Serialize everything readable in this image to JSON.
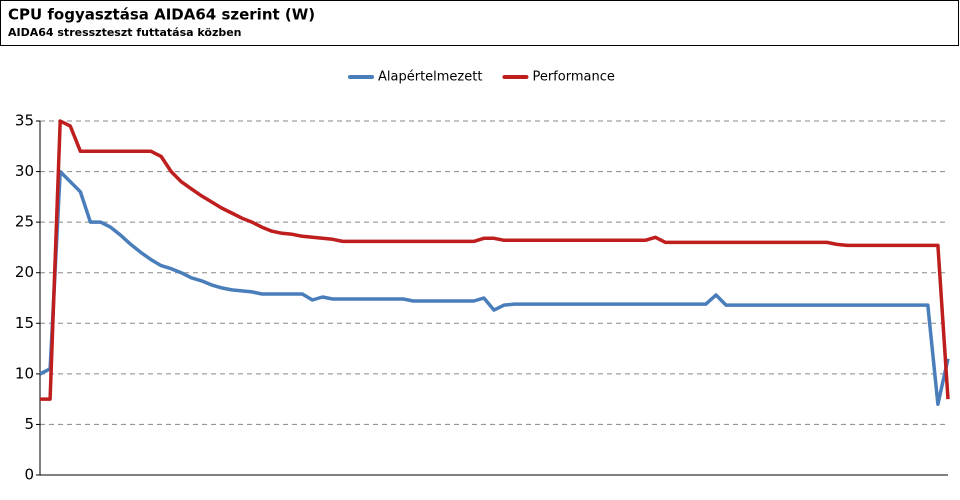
{
  "chart_data": {
    "type": "line",
    "title": "CPU fogyasztása AIDA64 szerint (W)",
    "subtitle": "AIDA64 stresszteszt futtatása közben",
    "legend": "top",
    "grid": true,
    "ylim": [
      0,
      35
    ],
    "yticks": [
      0,
      5,
      10,
      15,
      20,
      25,
      30,
      35
    ],
    "series": [
      {
        "name": "Alapértelmezett",
        "color": "#4a7ebb",
        "values": [
          10,
          10.5,
          30,
          29,
          28,
          25,
          25,
          24.5,
          23.7,
          22.8,
          22,
          21.3,
          20.7,
          20.4,
          20,
          19.5,
          19.2,
          18.8,
          18.5,
          18.3,
          18.2,
          18.1,
          17.9,
          17.9,
          17.9,
          17.9,
          17.9,
          17.3,
          17.6,
          17.4,
          17.4,
          17.4,
          17.4,
          17.4,
          17.4,
          17.4,
          17.4,
          17.2,
          17.2,
          17.2,
          17.2,
          17.2,
          17.2,
          17.2,
          17.5,
          16.3,
          16.8,
          16.9,
          16.9,
          16.9,
          16.9,
          16.9,
          16.9,
          16.9,
          16.9,
          16.9,
          16.9,
          16.9,
          16.9,
          16.9,
          16.9,
          16.9,
          16.9,
          16.9,
          16.9,
          16.9,
          16.9,
          17.8,
          16.8,
          16.8,
          16.8,
          16.8,
          16.8,
          16.8,
          16.8,
          16.8,
          16.8,
          16.8,
          16.8,
          16.8,
          16.8,
          16.8,
          16.8,
          16.8,
          16.8,
          16.8,
          16.8,
          16.8,
          16.8,
          7,
          11.5
        ]
      },
      {
        "name": "Performance",
        "color": "#be1e1e",
        "values": [
          7.5,
          7.5,
          35,
          34.5,
          32,
          32,
          32,
          32,
          32,
          32,
          32,
          32,
          31.5,
          30,
          29,
          28.3,
          27.6,
          27,
          26.4,
          25.9,
          25.4,
          25,
          24.5,
          24.1,
          23.9,
          23.8,
          23.6,
          23.5,
          23.4,
          23.3,
          23.1,
          23.1,
          23.1,
          23.1,
          23.1,
          23.1,
          23.1,
          23.1,
          23.1,
          23.1,
          23.1,
          23.1,
          23.1,
          23.1,
          23.4,
          23.4,
          23.2,
          23.2,
          23.2,
          23.2,
          23.2,
          23.2,
          23.2,
          23.2,
          23.2,
          23.2,
          23.2,
          23.2,
          23.2,
          23.2,
          23.2,
          23.5,
          23,
          23,
          23,
          23,
          23,
          23,
          23,
          23,
          23,
          23,
          23,
          23,
          23,
          23,
          23,
          23,
          23,
          22.8,
          22.7,
          22.7,
          22.7,
          22.7,
          22.7,
          22.7,
          22.7,
          22.7,
          22.7,
          22.7,
          7.5
        ]
      }
    ]
  }
}
